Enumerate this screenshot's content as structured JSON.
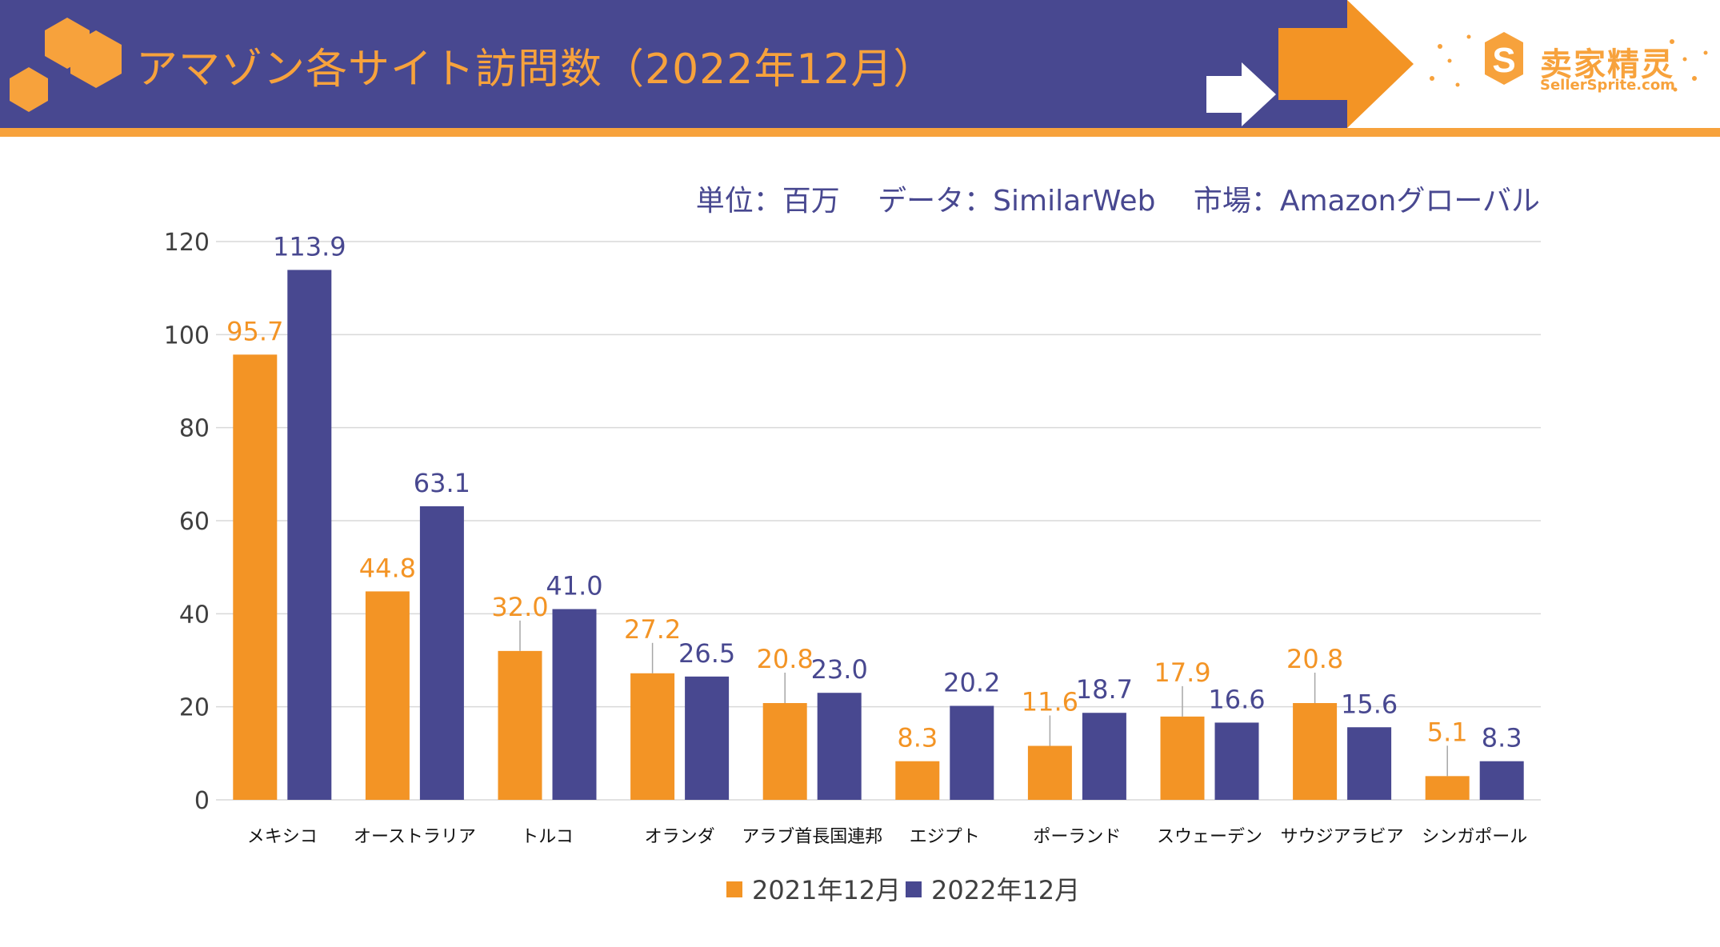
{
  "header": {
    "title": "アマゾン各サイト訪問数（2022年12月）",
    "logo_text": "卖家精灵",
    "logo_subtext": "SellerSprite.com"
  },
  "subtitle": "単位：百万　 データ：SimilarWeb　 市場：Amazonグローバル",
  "colors": {
    "header_band": "#484890",
    "accent": "#f7a23c",
    "series_2021": "#f39425",
    "series_2022": "#484890"
  },
  "chart_data": {
    "type": "bar",
    "title": "アマゾン各サイト訪問数（2022年12月）",
    "categories": [
      "メキシコ",
      "オーストラリア",
      "トルコ",
      "オランダ",
      "アラブ首長国連邦",
      "エジプト",
      "ポーランド",
      "スウェーデン",
      "サウジアラビア",
      "シンガポール"
    ],
    "series": [
      {
        "name": "2021年12月",
        "values": [
          95.7,
          44.8,
          32.0,
          27.2,
          20.8,
          8.3,
          11.6,
          17.9,
          20.8,
          5.1
        ]
      },
      {
        "name": "2022年12月",
        "values": [
          113.9,
          63.1,
          41.0,
          26.5,
          23.0,
          20.2,
          18.7,
          16.6,
          15.6,
          8.3
        ]
      }
    ],
    "ylim": [
      0,
      120
    ],
    "yticks": [
      0,
      20,
      40,
      60,
      80,
      100,
      120
    ],
    "grid": true,
    "legend": "bottom"
  }
}
